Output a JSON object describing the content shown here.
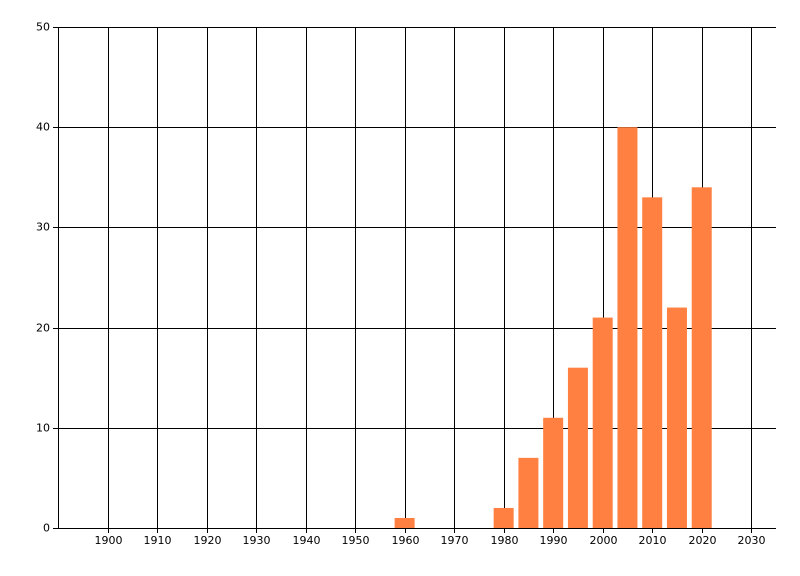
{
  "chart_data": {
    "type": "bar",
    "x": [
      1960,
      1980,
      1985,
      1990,
      1995,
      2000,
      2005,
      2010,
      2015,
      2020
    ],
    "values": [
      1,
      2,
      7,
      11,
      16,
      21,
      40,
      33,
      22,
      34
    ],
    "color": "#ff8040",
    "xlim": [
      1890,
      2035
    ],
    "xticks": [
      1900,
      1910,
      1920,
      1930,
      1940,
      1950,
      1960,
      1970,
      1980,
      1990,
      2000,
      2010,
      2020,
      2030
    ],
    "ylim": [
      0,
      50
    ],
    "yticks": [
      0,
      10,
      20,
      30,
      40,
      50
    ],
    "grid": true
  }
}
